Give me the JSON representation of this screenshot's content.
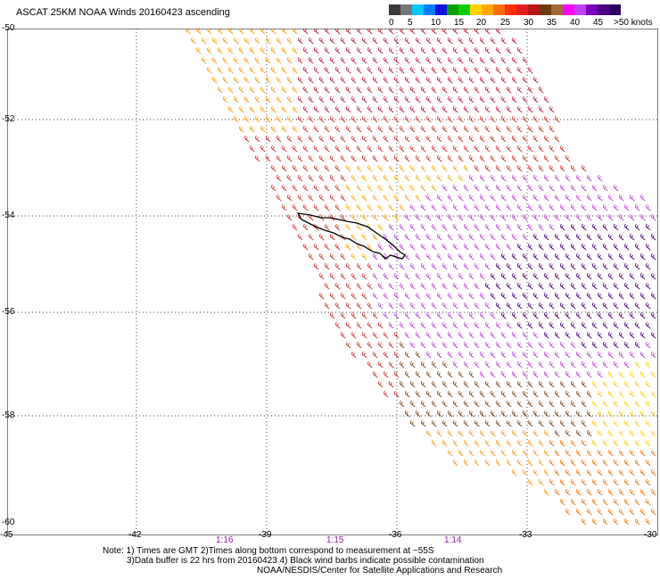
{
  "title": "ASCAT 25KM NOAA Winds 20160423 ascending",
  "colorbar": {
    "labels": [
      "0",
      "5",
      "10",
      "15",
      "20",
      "25",
      "30",
      "35",
      "40",
      "45",
      ">50 knots"
    ],
    "colors": [
      "#3a3a3a",
      "#777777",
      "#00c8ff",
      "#0080ff",
      "#1010e0",
      "#00a000",
      "#0ad000",
      "#ffd200",
      "#ffaa00",
      "#ff7000",
      "#ff3000",
      "#e02020",
      "#b81818",
      "#6a3a10",
      "#a06a3a",
      "#ff00ff",
      "#c040ff",
      "#7a00c0",
      "#4a0080",
      "#2a0060"
    ]
  },
  "map": {
    "lon_ticks": [
      "-45",
      "-42",
      "-39",
      "-36",
      "-33",
      "-30"
    ],
    "lat_ticks": [
      "-50",
      "-52",
      "-54",
      "-56",
      "-58",
      "-60"
    ],
    "times": [
      "1:16",
      "1:15",
      "1:14"
    ],
    "island": "South Georgia coastline"
  },
  "notes": [
    "Note: 1) Times are GMT 2)Times along bottom correspond to measurement at ~55S",
    "3)Data buffer is 22 hrs from 20160423 4) Black wind barbs indicate possible contamination",
    "NOAA/NESDIS/Center for Satellite Applications and Research"
  ]
}
